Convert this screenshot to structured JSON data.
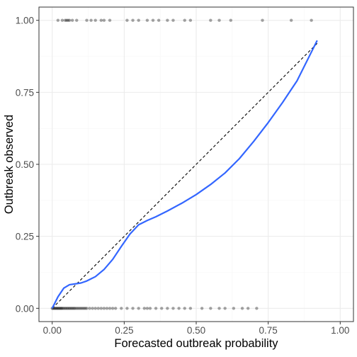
{
  "chart_data": {
    "type": "scatter",
    "xlabel": "Forecasted outbreak probability",
    "ylabel": "Outbreak observed",
    "xlim": [
      -0.046,
      1.046
    ],
    "ylim": [
      -0.046,
      1.046
    ],
    "x_ticks": [
      0.0,
      0.25,
      0.5,
      0.75,
      1.0
    ],
    "y_ticks": [
      0.0,
      0.25,
      0.5,
      0.75,
      1.0
    ],
    "x_tick_labels": [
      "0.00",
      "0.25",
      "0.50",
      "0.75",
      "1.00"
    ],
    "y_tick_labels": [
      "0.00",
      "0.25",
      "0.50",
      "0.75",
      "1.00"
    ],
    "grid": true,
    "colors": {
      "points": "#000000",
      "smooth_line": "#3366FF",
      "reference_line": "#000000",
      "grid_major": "#ebebeb",
      "grid_minor": "#f5f5f5",
      "panel_border": "#333333"
    },
    "series": [
      {
        "kind": "points_observed_1",
        "x": [
          0.02,
          0.035,
          0.045,
          0.05,
          0.055,
          0.06,
          0.07,
          0.085,
          0.12,
          0.135,
          0.15,
          0.17,
          0.18,
          0.2,
          0.26,
          0.28,
          0.3,
          0.33,
          0.35,
          0.37,
          0.4,
          0.42,
          0.46,
          0.48,
          0.55,
          0.58,
          0.62,
          0.73,
          0.83,
          0.9
        ],
        "y": [
          1,
          1,
          1,
          1,
          1,
          1,
          1,
          1,
          1,
          1,
          1,
          1,
          1,
          1,
          1,
          1,
          1,
          1,
          1,
          1,
          1,
          1,
          1,
          1,
          1,
          1,
          1,
          1,
          1,
          1
        ]
      },
      {
        "kind": "points_observed_0",
        "x": [
          0.0,
          0.003,
          0.006,
          0.009,
          0.012,
          0.015,
          0.018,
          0.021,
          0.024,
          0.027,
          0.03,
          0.033,
          0.036,
          0.04,
          0.044,
          0.048,
          0.052,
          0.056,
          0.06,
          0.064,
          0.068,
          0.072,
          0.076,
          0.08,
          0.085,
          0.09,
          0.095,
          0.1,
          0.105,
          0.11,
          0.115,
          0.12,
          0.13,
          0.14,
          0.15,
          0.16,
          0.17,
          0.18,
          0.19,
          0.2,
          0.21,
          0.22,
          0.24,
          0.26,
          0.28,
          0.3,
          0.32,
          0.33,
          0.34,
          0.36,
          0.38,
          0.4,
          0.42,
          0.44,
          0.46,
          0.48,
          0.52,
          0.55,
          0.58,
          0.6,
          0.63,
          0.66,
          0.68,
          0.71
        ],
        "y": [
          0,
          0,
          0,
          0,
          0,
          0,
          0,
          0,
          0,
          0,
          0,
          0,
          0,
          0,
          0,
          0,
          0,
          0,
          0,
          0,
          0,
          0,
          0,
          0,
          0,
          0,
          0,
          0,
          0,
          0,
          0,
          0,
          0,
          0,
          0,
          0,
          0,
          0,
          0,
          0,
          0,
          0,
          0,
          0,
          0,
          0,
          0,
          0,
          0,
          0,
          0,
          0,
          0,
          0,
          0,
          0,
          0,
          0,
          0,
          0,
          0,
          0,
          0,
          0
        ]
      },
      {
        "kind": "smooth_line",
        "x": [
          0.0,
          0.02,
          0.04,
          0.06,
          0.08,
          0.1,
          0.12,
          0.15,
          0.18,
          0.21,
          0.24,
          0.27,
          0.3,
          0.33,
          0.36,
          0.4,
          0.45,
          0.5,
          0.55,
          0.6,
          0.65,
          0.7,
          0.75,
          0.8,
          0.85,
          0.9,
          0.92
        ],
        "y": [
          0.0,
          0.04,
          0.07,
          0.082,
          0.085,
          0.088,
          0.095,
          0.11,
          0.135,
          0.17,
          0.215,
          0.258,
          0.29,
          0.305,
          0.318,
          0.338,
          0.365,
          0.395,
          0.43,
          0.47,
          0.52,
          0.58,
          0.645,
          0.715,
          0.79,
          0.89,
          0.93
        ]
      },
      {
        "kind": "reference_line",
        "x": [
          0.0,
          0.92
        ],
        "y": [
          0.0,
          0.92
        ]
      }
    ]
  }
}
